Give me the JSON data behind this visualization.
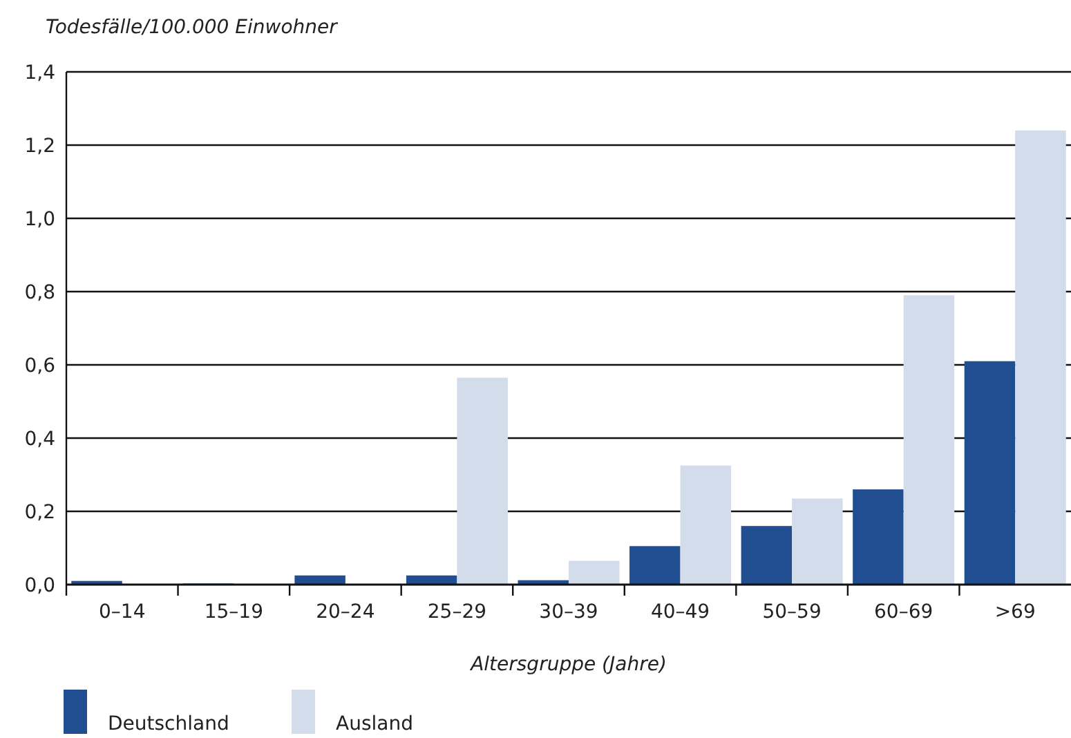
{
  "chart_data": {
    "type": "bar",
    "ylabel": "Todesfälle/100.000 Einwohner",
    "xlabel": "Altersgruppe (Jahre)",
    "categories": [
      "0–14",
      "15–19",
      "20–24",
      "25–29",
      "30–39",
      "40–49",
      "50–59",
      "60–69",
      ">69"
    ],
    "series": [
      {
        "name": "Deutschland",
        "color": "#214d91",
        "values": [
          0.01,
          0.003,
          0.025,
          0.025,
          0.012,
          0.105,
          0.16,
          0.26,
          0.61
        ]
      },
      {
        "name": "Ausland",
        "color": "#d3dcea",
        "values": [
          0,
          0,
          0,
          0.565,
          0.065,
          0.325,
          0.235,
          0.79,
          1.24
        ]
      }
    ],
    "ylim": [
      0,
      1.4
    ],
    "yticks": [
      {
        "value": 0,
        "label": "0,0"
      },
      {
        "value": 0.2,
        "label": "0,2"
      },
      {
        "value": 0.4,
        "label": "0,4"
      },
      {
        "value": 0.6,
        "label": "0,6"
      },
      {
        "value": 0.8,
        "label": "0,8"
      },
      {
        "value": 1,
        "label": "1,0"
      },
      {
        "value": 1.2,
        "label": "1,2"
      },
      {
        "value": 1.4,
        "label": "1,4"
      }
    ],
    "grid": "y",
    "legend": "bottom left"
  }
}
